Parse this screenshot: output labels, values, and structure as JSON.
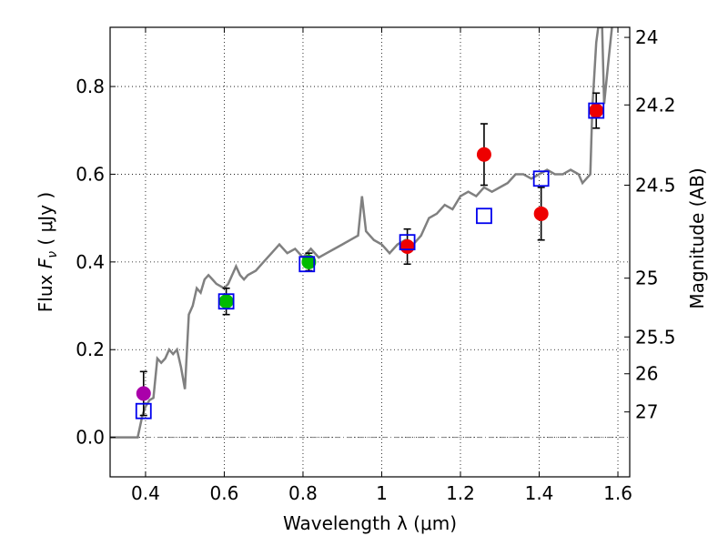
{
  "chart_data": {
    "type": "scatter",
    "title": "",
    "xlabel": "Wavelength  λ (μm)",
    "ylabel": "Flux  F_ν  ( μJy )",
    "ylabel_parts": {
      "prefix": "Flux  ",
      "symbol": "F",
      "subscript": "ν",
      "suffix": "  ( μJy )"
    },
    "y2label": "Magnitude (AB)",
    "xlim": [
      0.31,
      1.63
    ],
    "ylim": [
      -0.09,
      0.935
    ],
    "grid": true,
    "x_ticks": [
      {
        "value": 0.4,
        "label": "0.4"
      },
      {
        "value": 0.6,
        "label": "0.6"
      },
      {
        "value": 0.8,
        "label": "0.8"
      },
      {
        "value": 1.0,
        "label": "1"
      },
      {
        "value": 1.2,
        "label": "1.2"
      },
      {
        "value": 1.4,
        "label": "1.4"
      },
      {
        "value": 1.6,
        "label": "1.6"
      }
    ],
    "y_ticks": [
      {
        "value": 0.0,
        "label": "0.0"
      },
      {
        "value": 0.2,
        "label": "0.2"
      },
      {
        "value": 0.4,
        "label": "0.4"
      },
      {
        "value": 0.6,
        "label": "0.6"
      },
      {
        "value": 0.8,
        "label": "0.8"
      }
    ],
    "y2_ticks": [
      {
        "flux": 0.912,
        "label": "24"
      },
      {
        "flux": 0.758,
        "label": "24.2"
      },
      {
        "flux": 0.575,
        "label": "24.5"
      },
      {
        "flux": 0.363,
        "label": "25"
      },
      {
        "flux": 0.229,
        "label": "25.5"
      },
      {
        "flux": 0.145,
        "label": "26"
      },
      {
        "flux": 0.058,
        "label": "27"
      }
    ],
    "model_sed": {
      "color": "#808080",
      "points": [
        [
          0.31,
          0.0
        ],
        [
          0.38,
          0.0
        ],
        [
          0.392,
          0.05
        ],
        [
          0.4,
          0.07
        ],
        [
          0.41,
          0.085
        ],
        [
          0.42,
          0.09
        ],
        [
          0.43,
          0.18
        ],
        [
          0.44,
          0.17
        ],
        [
          0.45,
          0.18
        ],
        [
          0.46,
          0.2
        ],
        [
          0.47,
          0.19
        ],
        [
          0.48,
          0.2
        ],
        [
          0.49,
          0.16
        ],
        [
          0.5,
          0.11
        ],
        [
          0.51,
          0.28
        ],
        [
          0.52,
          0.3
        ],
        [
          0.53,
          0.34
        ],
        [
          0.54,
          0.33
        ],
        [
          0.55,
          0.36
        ],
        [
          0.56,
          0.37
        ],
        [
          0.57,
          0.36
        ],
        [
          0.58,
          0.35
        ],
        [
          0.6,
          0.34
        ],
        [
          0.61,
          0.35
        ],
        [
          0.62,
          0.37
        ],
        [
          0.63,
          0.39
        ],
        [
          0.64,
          0.37
        ],
        [
          0.65,
          0.36
        ],
        [
          0.66,
          0.37
        ],
        [
          0.68,
          0.38
        ],
        [
          0.7,
          0.4
        ],
        [
          0.72,
          0.42
        ],
        [
          0.74,
          0.44
        ],
        [
          0.76,
          0.42
        ],
        [
          0.78,
          0.43
        ],
        [
          0.8,
          0.41
        ],
        [
          0.81,
          0.42
        ],
        [
          0.82,
          0.43
        ],
        [
          0.84,
          0.41
        ],
        [
          0.86,
          0.42
        ],
        [
          0.88,
          0.43
        ],
        [
          0.9,
          0.44
        ],
        [
          0.92,
          0.45
        ],
        [
          0.94,
          0.46
        ],
        [
          0.95,
          0.55
        ],
        [
          0.96,
          0.47
        ],
        [
          0.97,
          0.46
        ],
        [
          0.98,
          0.45
        ],
        [
          1.0,
          0.44
        ],
        [
          1.02,
          0.42
        ],
        [
          1.04,
          0.44
        ],
        [
          1.06,
          0.45
        ],
        [
          1.08,
          0.44
        ],
        [
          1.1,
          0.46
        ],
        [
          1.12,
          0.5
        ],
        [
          1.14,
          0.51
        ],
        [
          1.16,
          0.53
        ],
        [
          1.18,
          0.52
        ],
        [
          1.2,
          0.55
        ],
        [
          1.22,
          0.56
        ],
        [
          1.24,
          0.55
        ],
        [
          1.26,
          0.57
        ],
        [
          1.28,
          0.56
        ],
        [
          1.3,
          0.57
        ],
        [
          1.32,
          0.58
        ],
        [
          1.34,
          0.6
        ],
        [
          1.36,
          0.6
        ],
        [
          1.38,
          0.59
        ],
        [
          1.4,
          0.6
        ],
        [
          1.42,
          0.61
        ],
        [
          1.44,
          0.6
        ],
        [
          1.46,
          0.6
        ],
        [
          1.48,
          0.61
        ],
        [
          1.5,
          0.6
        ],
        [
          1.51,
          0.58
        ],
        [
          1.52,
          0.59
        ],
        [
          1.53,
          0.6
        ],
        [
          1.535,
          0.75
        ],
        [
          1.545,
          0.9
        ],
        [
          1.55,
          0.935
        ],
        [
          1.56,
          0.935
        ],
        [
          1.565,
          0.76
        ],
        [
          1.575,
          0.85
        ],
        [
          1.585,
          0.935
        ]
      ]
    },
    "observed": [
      {
        "x": 0.395,
        "y": 0.1,
        "yerr": 0.05,
        "color": "#aa00aa"
      },
      {
        "x": 0.605,
        "y": 0.31,
        "yerr": 0.03,
        "color": "#00bb00"
      },
      {
        "x": 0.815,
        "y": 0.4,
        "yerr": 0.02,
        "color": "#00bb00"
      },
      {
        "x": 1.065,
        "y": 0.435,
        "yerr": 0.04,
        "color": "#ee0000"
      },
      {
        "x": 1.26,
        "y": 0.645,
        "yerr": 0.07,
        "color": "#ee0000"
      },
      {
        "x": 1.405,
        "y": 0.51,
        "yerr": 0.06,
        "color": "#ee0000"
      },
      {
        "x": 1.545,
        "y": 0.745,
        "yerr": 0.04,
        "color": "#ee0000"
      }
    ],
    "model_photometry": {
      "color": "#0000ee",
      "points": [
        {
          "x": 0.395,
          "y": 0.06
        },
        {
          "x": 0.605,
          "y": 0.31
        },
        {
          "x": 0.81,
          "y": 0.395
        },
        {
          "x": 1.065,
          "y": 0.445
        },
        {
          "x": 1.26,
          "y": 0.505
        },
        {
          "x": 1.405,
          "y": 0.59
        },
        {
          "x": 1.545,
          "y": 0.745
        }
      ]
    },
    "zero_line": {
      "y": 0.0,
      "color": "#808080"
    }
  }
}
